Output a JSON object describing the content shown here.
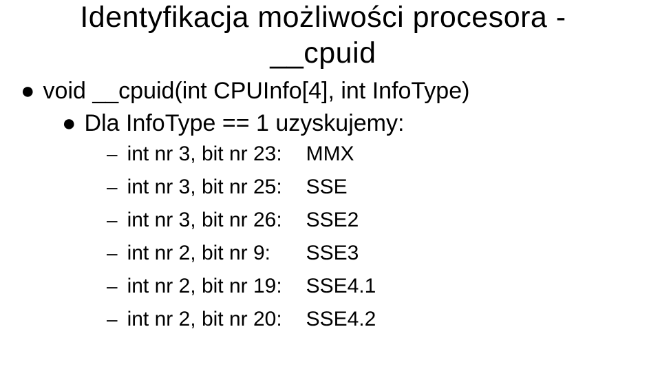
{
  "title_line1": "Identyfikacja możliwości procesora -",
  "title_line2": "__cpuid",
  "bullet1": "void __cpuid(int CPUInfo[4], int InfoType)",
  "bullet2": "Dla InfoType == 1 uzyskujemy:",
  "rows": [
    {
      "label": "int nr 3, bit nr 23:",
      "value": "MMX"
    },
    {
      "label": "int nr 3, bit nr 25:",
      "value": "SSE"
    },
    {
      "label": "int nr 3, bit nr 26:",
      "value": "SSE2"
    },
    {
      "label": "int nr 2, bit nr 9:",
      "value": "SSE3"
    },
    {
      "label": "int nr 2, bit nr 19:",
      "value": "SSE4.1"
    },
    {
      "label": "int nr 2, bit nr 20:",
      "value": "SSE4.2"
    }
  ],
  "colors": {
    "text": "#000000",
    "background": "#ffffff"
  },
  "fonts": {
    "title_size_pt": 43,
    "level1_size_pt": 34,
    "level3_size_pt": 30,
    "family": "Arial"
  }
}
